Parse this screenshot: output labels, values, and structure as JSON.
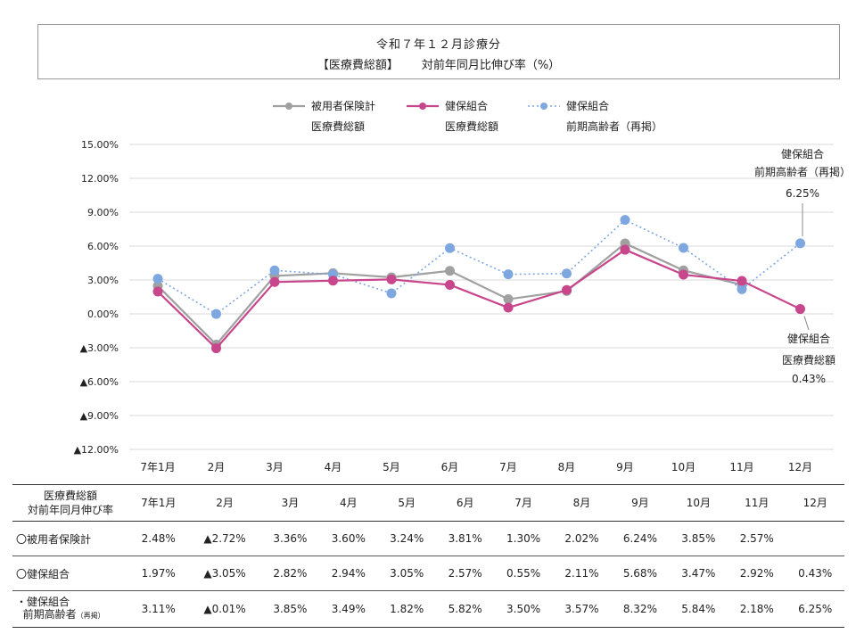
{
  "header": {
    "title_line1": "令和７年１２月診療分",
    "title_line2a": "【医療費総額】",
    "title_line2b": "対前年同月比伸び率（%）"
  },
  "chart_data": {
    "type": "line",
    "categories": [
      "7年1月",
      "2月",
      "3月",
      "4月",
      "5月",
      "6月",
      "7月",
      "8月",
      "9月",
      "10月",
      "11月",
      "12月"
    ],
    "y_tick_labels": [
      "15.00%",
      "12.00%",
      "9.00%",
      "6.00%",
      "3.00%",
      "0.00%",
      "▲3.00%",
      "▲6.00%",
      "▲9.00%",
      "▲12.00%"
    ],
    "y_tick_values": [
      15,
      12,
      9,
      6,
      3,
      0,
      -3,
      -6,
      -9,
      -12
    ],
    "ylim": [
      -12,
      15
    ],
    "legend_position": "top",
    "series": [
      {
        "name_line1": "被用者保険計",
        "name_line2": "医療費総額",
        "color": "#a0a0a0",
        "style": "solid",
        "values": [
          2.48,
          -2.72,
          3.36,
          3.6,
          3.24,
          3.81,
          1.3,
          2.02,
          6.24,
          3.85,
          2.57,
          null
        ]
      },
      {
        "name_line1": "健保組合",
        "name_line2": "医療費総額",
        "color": "#c8468c",
        "style": "solid",
        "values": [
          1.97,
          -3.05,
          2.82,
          2.94,
          3.05,
          2.57,
          0.55,
          2.11,
          5.68,
          3.47,
          2.92,
          0.43
        ]
      },
      {
        "name_line1": "健保組合",
        "name_line2": "前期高齢者（再掲）",
        "color": "#7ea7e0",
        "style": "dotted",
        "values": [
          3.11,
          -0.01,
          3.85,
          3.49,
          1.82,
          5.82,
          3.5,
          3.57,
          8.32,
          5.84,
          2.18,
          6.25
        ]
      }
    ],
    "annotations": [
      {
        "lines": [
          "健保組合",
          "前期高齢者（再掲）",
          "6.25%"
        ]
      },
      {
        "lines": [
          "健保組合",
          "医療費総額",
          "0.43%"
        ]
      }
    ]
  },
  "table": {
    "header_label_line1": "医療費総額",
    "header_label_line2": "対前年同月伸び率",
    "columns": [
      "7年1月",
      "2月",
      "3月",
      "4月",
      "5月",
      "6月",
      "7月",
      "8月",
      "9月",
      "10月",
      "11月",
      "12月"
    ],
    "rows": [
      {
        "label": "〇被用者保険計",
        "cells": [
          "2.48%",
          "▲2.72%",
          "3.36%",
          "3.60%",
          "3.24%",
          "3.81%",
          "1.30%",
          "2.02%",
          "6.24%",
          "3.85%",
          "2.57%",
          ""
        ]
      },
      {
        "label": "〇健保組合",
        "cells": [
          "1.97%",
          "▲3.05%",
          "2.82%",
          "2.94%",
          "3.05%",
          "2.57%",
          "0.55%",
          "2.11%",
          "5.68%",
          "3.47%",
          "2.92%",
          "0.43%"
        ]
      },
      {
        "label_line1": "・健保組合",
        "label_line2": "前期高齢者",
        "label_small": "（再掲）",
        "cells": [
          "3.11%",
          "▲0.01%",
          "3.85%",
          "3.49%",
          "1.82%",
          "5.82%",
          "3.50%",
          "3.57%",
          "8.32%",
          "5.84%",
          "2.18%",
          "6.25%"
        ]
      }
    ]
  }
}
